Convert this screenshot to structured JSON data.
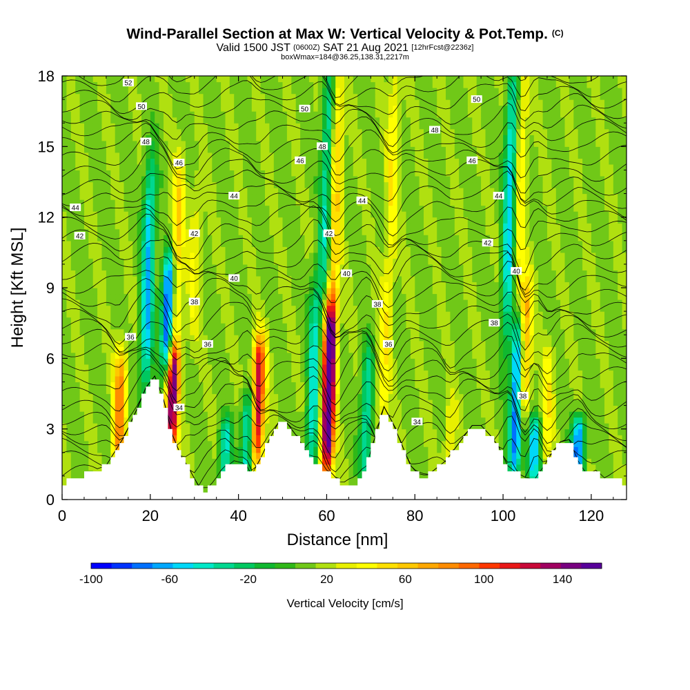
{
  "header": {
    "title": "Wind-Parallel Section at Max W: Vertical Velocity & Pot.Temp.",
    "title_sup": "(C)",
    "subtitle_a": "Valid 1500 JST",
    "subtitle_b": "(0600Z)",
    "subtitle_c": "SAT 21 Aug 2021",
    "subtitle_d": "[12hrFcst@2236z]",
    "subtitle2": "boxWmax=184@36.25,138.31,2217m"
  },
  "chart_data": {
    "type": "heatmap",
    "xlabel": "Distance [nm]",
    "ylabel": "Height [Kft MSL]",
    "xlim": [
      0,
      128
    ],
    "ylim": [
      0,
      18
    ],
    "xticks": [
      0,
      20,
      40,
      60,
      80,
      100,
      120
    ],
    "yticks": [
      0,
      3,
      6,
      9,
      12,
      15,
      18
    ],
    "colorbar": {
      "label": "Vertical Velocity [cm/s]",
      "min": -100,
      "max": 160,
      "ticks": [
        -100,
        -60,
        -20,
        20,
        60,
        100,
        140
      ],
      "colors": [
        "#0000ff",
        "#0033ff",
        "#0070ff",
        "#00a8ff",
        "#00d8f8",
        "#00e8c8",
        "#00d890",
        "#00c860",
        "#10b830",
        "#30b818",
        "#70c818",
        "#b0e010",
        "#e8f000",
        "#ffff00",
        "#ffe000",
        "#ffc800",
        "#ffa800",
        "#ff8c00",
        "#ff6800",
        "#ff3800",
        "#e81818",
        "#c80838",
        "#a00060",
        "#780080",
        "#58009a"
      ]
    },
    "updrafts": [
      {
        "x": 13,
        "y0": 1.5,
        "y1": 6.0,
        "w": 85
      },
      {
        "x": 25,
        "y0": 2.5,
        "y1": 6.0,
        "w": 145
      },
      {
        "x": 26,
        "y0": 6.0,
        "y1": 14.0,
        "w": 60
      },
      {
        "x": 30,
        "y0": 7.0,
        "y1": 13.0,
        "w": 35
      },
      {
        "x": 44.5,
        "y0": 2.0,
        "y1": 6.5,
        "w": 130
      },
      {
        "x": 60.5,
        "y0": 1.5,
        "y1": 8.0,
        "w": 190
      },
      {
        "x": 62,
        "y0": 8.0,
        "y1": 18.0,
        "w": 60
      },
      {
        "x": 73,
        "y0": 3.0,
        "y1": 9.0,
        "w": 45
      },
      {
        "x": 75,
        "y0": 10.0,
        "y1": 18.0,
        "w": 45
      },
      {
        "x": 88,
        "y0": 1.0,
        "y1": 4.0,
        "w": 35
      },
      {
        "x": 105,
        "y0": 4.0,
        "y1": 9.0,
        "w": 75
      },
      {
        "x": 104,
        "y0": 9.0,
        "y1": 18.0,
        "w": 45
      },
      {
        "x": 110,
        "y0": 2.0,
        "y1": 6.0,
        "w": 45
      }
    ],
    "downdrafts": [
      {
        "x": 19.5,
        "y0": 5.0,
        "y1": 14.0,
        "w": -60
      },
      {
        "x": 24,
        "y0": 6.0,
        "y1": 10.0,
        "w": -95
      },
      {
        "x": 37,
        "y0": 1.0,
        "y1": 3.0,
        "w": -40
      },
      {
        "x": 42,
        "y0": 1.0,
        "y1": 4.0,
        "w": -50
      },
      {
        "x": 57,
        "y0": 1.0,
        "y1": 9.0,
        "w": -45
      },
      {
        "x": 60,
        "y0": 9.0,
        "y1": 18.0,
        "w": -40
      },
      {
        "x": 69,
        "y0": 1.0,
        "y1": 6.0,
        "w": -40
      },
      {
        "x": 103,
        "y0": 1.5,
        "y1": 7.0,
        "w": -85
      },
      {
        "x": 101.5,
        "y0": 7.0,
        "y1": 18.0,
        "w": -55
      },
      {
        "x": 107,
        "y0": 1.0,
        "y1": 3.0,
        "w": -60
      },
      {
        "x": 117,
        "y0": 1.0,
        "y1": 3.0,
        "w": -80
      }
    ],
    "terrain": {
      "x": [
        0,
        3,
        6,
        10,
        14,
        17,
        19,
        21,
        23,
        25,
        27,
        29,
        31,
        33,
        35,
        37,
        39,
        41,
        43,
        45,
        47,
        49,
        51,
        53,
        55,
        57,
        59,
        61,
        63,
        65,
        67,
        69,
        71,
        73,
        75,
        77,
        79,
        81,
        83,
        85,
        87,
        89,
        91,
        93,
        95,
        97,
        99,
        101,
        103,
        105,
        107,
        109,
        111,
        113,
        115,
        117,
        119,
        121,
        123,
        125,
        127,
        128
      ],
      "y": [
        0.6,
        0.9,
        1.1,
        1.4,
        2.6,
        3.8,
        4.7,
        5.2,
        4.2,
        2.7,
        1.8,
        1.2,
        0.5,
        0.4,
        0.8,
        1.3,
        1.6,
        1.5,
        1.0,
        1.7,
        2.5,
        3.2,
        3.2,
        2.7,
        2.1,
        1.6,
        1.3,
        1.1,
        0.7,
        0.4,
        0.6,
        1.4,
        2.6,
        3.9,
        3.2,
        2.3,
        1.4,
        1.0,
        1.0,
        1.3,
        1.6,
        2.1,
        2.6,
        3.1,
        3.1,
        2.7,
        2.2,
        1.4,
        1.1,
        0.9,
        0.8,
        1.3,
        1.9,
        2.4,
        2.5,
        1.6,
        1.0,
        1.2,
        0.9,
        0.8,
        0.8,
        0.6
      ]
    },
    "contour_labels": [
      {
        "x": 15,
        "y": 17.7,
        "text": "52"
      },
      {
        "x": 18,
        "y": 16.7,
        "text": "50"
      },
      {
        "x": 19,
        "y": 15.2,
        "text": "48"
      },
      {
        "x": 26.5,
        "y": 14.3,
        "text": "46"
      },
      {
        "x": 3,
        "y": 12.4,
        "text": "44"
      },
      {
        "x": 4,
        "y": 11.2,
        "text": "42"
      },
      {
        "x": 30,
        "y": 11.3,
        "text": "42"
      },
      {
        "x": 39,
        "y": 12.9,
        "text": "44"
      },
      {
        "x": 39,
        "y": 9.4,
        "text": "40"
      },
      {
        "x": 30,
        "y": 8.4,
        "text": "38"
      },
      {
        "x": 15.5,
        "y": 6.9,
        "text": "36"
      },
      {
        "x": 33,
        "y": 6.6,
        "text": "36"
      },
      {
        "x": 26.5,
        "y": 3.9,
        "text": "34"
      },
      {
        "x": 55,
        "y": 16.6,
        "text": "50"
      },
      {
        "x": 59,
        "y": 15.0,
        "text": "48"
      },
      {
        "x": 54,
        "y": 14.4,
        "text": "46"
      },
      {
        "x": 68,
        "y": 12.7,
        "text": "44"
      },
      {
        "x": 60.5,
        "y": 11.3,
        "text": "42"
      },
      {
        "x": 64.5,
        "y": 9.6,
        "text": "40"
      },
      {
        "x": 71.5,
        "y": 8.3,
        "text": "38"
      },
      {
        "x": 74,
        "y": 6.6,
        "text": "36"
      },
      {
        "x": 80.5,
        "y": 3.3,
        "text": "34"
      },
      {
        "x": 94,
        "y": 17.0,
        "text": "50"
      },
      {
        "x": 84.5,
        "y": 15.7,
        "text": "48"
      },
      {
        "x": 93,
        "y": 14.4,
        "text": "46"
      },
      {
        "x": 99,
        "y": 12.9,
        "text": "44"
      },
      {
        "x": 96.5,
        "y": 10.9,
        "text": "42"
      },
      {
        "x": 103,
        "y": 9.7,
        "text": "40"
      },
      {
        "x": 98,
        "y": 7.5,
        "text": "38"
      },
      {
        "x": 104.5,
        "y": 4.4,
        "text": "38"
      }
    ]
  }
}
